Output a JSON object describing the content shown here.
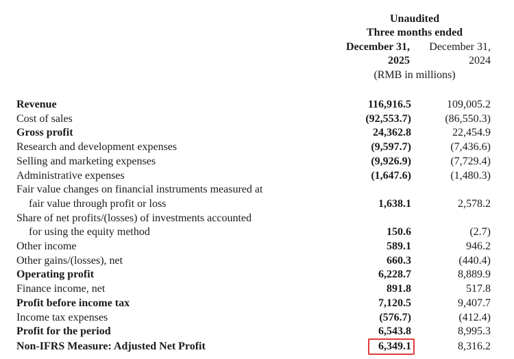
{
  "header": {
    "unaudited": "Unaudited",
    "period": "Three months ended",
    "date_2025": "December 31,",
    "year_2025": "2025",
    "date_2024": "December 31,",
    "year_2024": "2024",
    "units": "(RMB in millions)"
  },
  "rows": [
    {
      "label": "Revenue",
      "v2025": "116,916.5",
      "v2024": "109,005.2",
      "bold": true
    },
    {
      "label": "Cost of sales",
      "v2025": "(92,553.7)",
      "v2024": "(86,550.3)",
      "bold": false
    },
    {
      "label": "Gross profit",
      "v2025": "24,362.8",
      "v2024": "22,454.9",
      "bold": true
    },
    {
      "label": "Research and development expenses",
      "v2025": "(9,597.7)",
      "v2024": "(7,436.6)",
      "bold": false
    },
    {
      "label": "Selling and marketing expenses",
      "v2025": "(9,926.9)",
      "v2024": "(7,729.4)",
      "bold": false
    },
    {
      "label": "Administrative expenses",
      "v2025": "(1,647.6)",
      "v2024": "(1,480.3)",
      "bold": false
    },
    {
      "label": "Fair value changes on financial instruments measured at",
      "v2025": "",
      "v2024": "",
      "bold": false
    },
    {
      "label": "fair value through profit or loss",
      "v2025": "1,638.1",
      "v2024": "2,578.2",
      "bold": false
    },
    {
      "label": "Share of net profits/(losses) of investments accounted",
      "v2025": "",
      "v2024": "",
      "bold": false
    },
    {
      "label": "for using the equity method",
      "v2025": "150.6",
      "v2024": "(2.7)",
      "bold": false
    },
    {
      "label": "Other income",
      "v2025": "589.1",
      "v2024": "946.2",
      "bold": false
    },
    {
      "label": "Other gains/(losses), net",
      "v2025": "660.3",
      "v2024": "(440.4)",
      "bold": false
    },
    {
      "label": "Operating profit",
      "v2025": "6,228.7",
      "v2024": "8,889.9",
      "bold": true
    },
    {
      "label": "Finance income, net",
      "v2025": "891.8",
      "v2024": "517.8",
      "bold": false
    },
    {
      "label": "Profit before income tax",
      "v2025": "7,120.5",
      "v2024": "9,407.7",
      "bold": true
    },
    {
      "label": "Income tax expenses",
      "v2025": "(576.7)",
      "v2024": "(412.4)",
      "bold": false
    },
    {
      "label": "Profit for the period",
      "v2025": "6,543.8",
      "v2024": "8,995.3",
      "bold": true
    },
    {
      "label": "Non-IFRS Measure: Adjusted Net Profit",
      "v2025": "6,349.1",
      "v2024": "8,316.2",
      "bold": true
    }
  ],
  "highlight_color": "#e03a3a"
}
